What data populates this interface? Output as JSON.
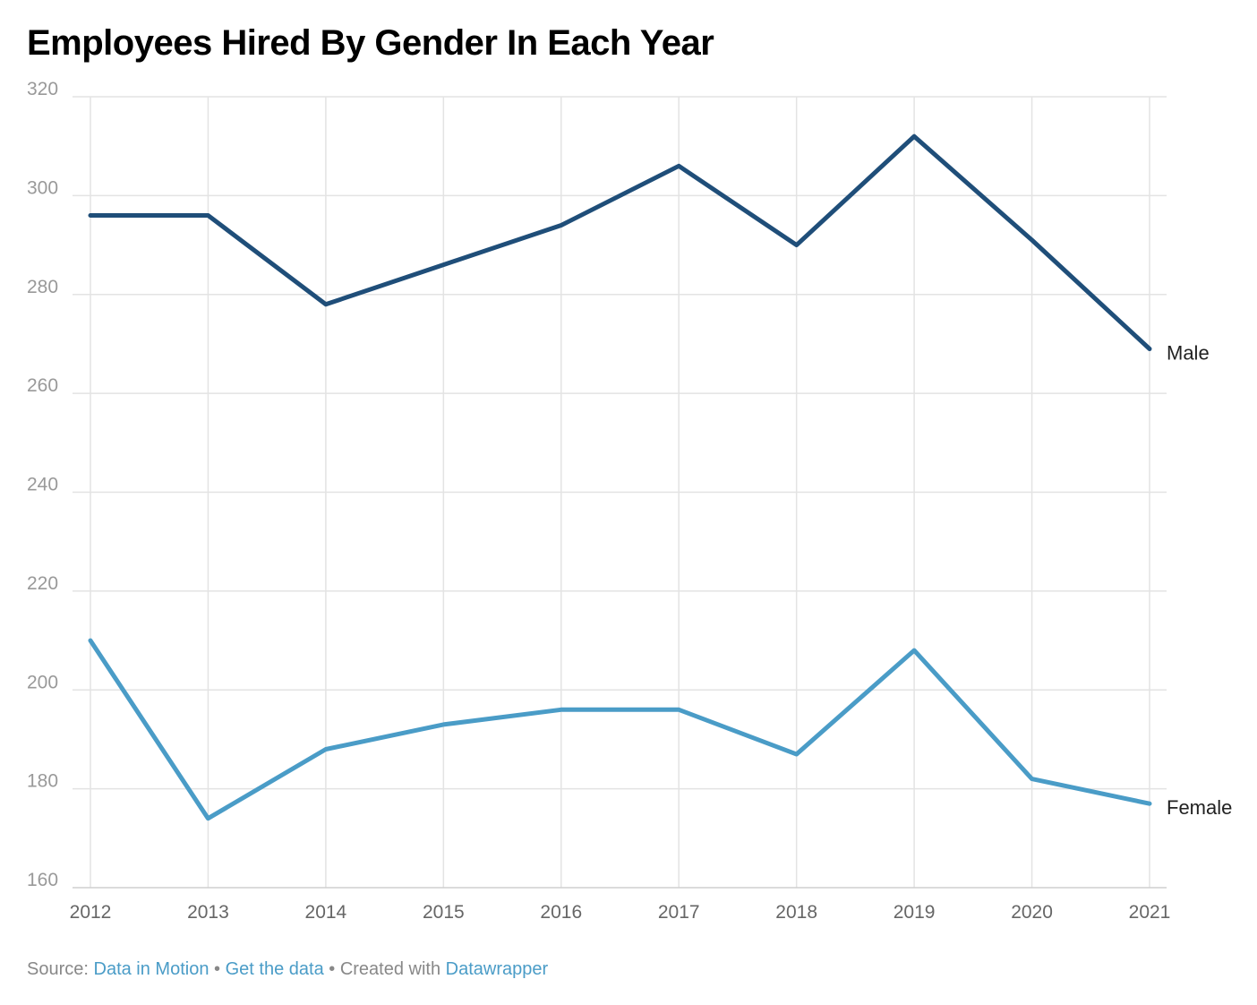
{
  "chart_data": {
    "type": "line",
    "title": "Employees Hired By Gender In Each Year",
    "x": [
      2012,
      2013,
      2014,
      2015,
      2016,
      2017,
      2018,
      2019,
      2020,
      2021
    ],
    "ylim": [
      160,
      320
    ],
    "yticks": [
      160,
      180,
      200,
      220,
      240,
      260,
      280,
      300,
      320
    ],
    "grid": true,
    "legend": "direct labels at line ends",
    "series": [
      {
        "name": "Male",
        "color": "#1f4e79",
        "values": [
          296,
          296,
          278,
          286,
          294,
          306,
          290,
          312,
          291,
          269
        ]
      },
      {
        "name": "Female",
        "color": "#4a9cc7",
        "values": [
          210,
          174,
          188,
          193,
          196,
          196,
          187,
          208,
          182,
          177
        ]
      }
    ]
  },
  "footer": {
    "source_label": "Source:",
    "source_link": "Data in Motion",
    "sep1": "•",
    "data_link": "Get the data",
    "sep2": "•",
    "created_label": "Created with",
    "created_link": "Datawrapper"
  }
}
